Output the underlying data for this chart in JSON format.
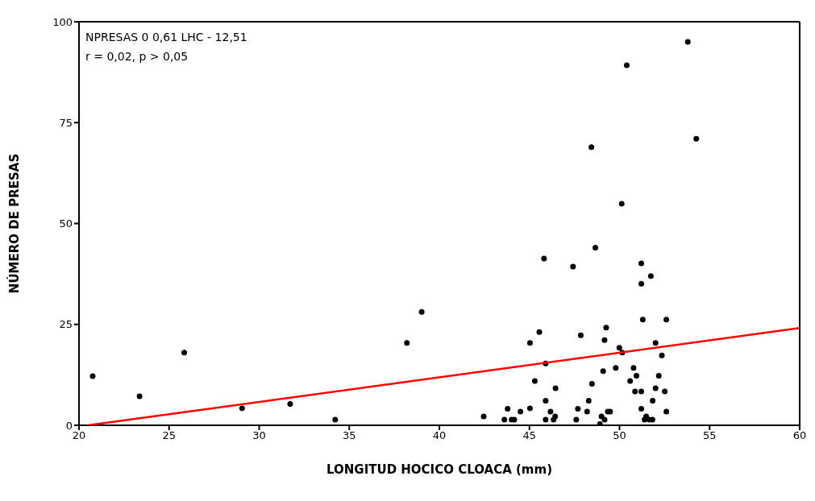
{
  "chart_data": {
    "type": "scatter",
    "xlabel": "LONGITUD HOCICO CLOACA (mm)",
    "ylabel": "NÚMERO DE PRESAS",
    "annotations": [
      "NPRESAS 0 0,61 LHC - 12,51",
      "r = 0,02, p > 0,05"
    ],
    "xlim": [
      20,
      60
    ],
    "xticks": [
      20,
      25,
      30,
      35,
      40,
      45,
      50,
      55,
      60
    ],
    "ylim": [
      0,
      100
    ],
    "yticks": [
      0,
      25,
      50,
      75,
      100
    ],
    "series": [
      {
        "color": "#000000",
        "marker": "circle",
        "x": [
          20.76,
          23.36,
          25.84,
          29.05,
          31.72,
          34.22,
          38.2,
          39.02,
          53.79,
          50.4,
          48.44,
          54.26,
          50.12,
          42.46,
          43.61,
          43.79,
          44.01,
          44.16,
          44.5,
          45.03,
          45.03,
          45.3,
          45.55,
          45.81,
          45.9,
          45.9,
          45.9,
          46.17,
          46.34,
          46.43,
          46.45,
          47.42,
          47.6,
          47.69,
          47.85,
          48.2,
          48.29,
          48.47,
          48.66,
          48.91,
          49.0,
          49.09,
          49.17,
          49.17,
          49.26,
          49.35,
          49.48,
          49.79,
          49.99,
          50.15,
          50.59,
          50.78,
          50.94,
          50.86,
          51.21,
          51.21,
          51.21,
          51.29,
          51.21,
          51.39,
          51.48,
          51.65,
          51.83,
          51.74,
          51.84,
          52.0,
          52.0,
          52.18,
          52.35,
          52.51,
          52.6,
          52.6
        ],
        "values": [
          12.2,
          7.2,
          18.0,
          4.2,
          5.3,
          1.4,
          20.4,
          28.1,
          95.0,
          89.2,
          68.9,
          71.0,
          54.9,
          2.2,
          1.4,
          4.1,
          1.4,
          1.4,
          3.4,
          20.4,
          4.2,
          11.0,
          23.1,
          41.3,
          15.3,
          6.1,
          1.4,
          3.4,
          1.4,
          2.2,
          9.2,
          39.3,
          1.4,
          4.1,
          22.3,
          3.4,
          6.1,
          10.3,
          44.0,
          0.3,
          2.2,
          13.4,
          1.4,
          21.1,
          24.2,
          3.4,
          3.4,
          14.2,
          19.2,
          18.0,
          11.0,
          14.2,
          12.3,
          8.4,
          8.4,
          40.1,
          35.1,
          26.2,
          4.1,
          1.4,
          2.2,
          1.4,
          1.4,
          37.0,
          6.1,
          20.4,
          9.2,
          12.3,
          17.3,
          8.4,
          26.2,
          3.4
        ]
      },
      {
        "type": "line",
        "color": "#ff0000",
        "marker": "none",
        "line_style": "solid",
        "x": [
          20.5,
          60
        ],
        "values": [
          0,
          24.1
        ]
      }
    ]
  }
}
